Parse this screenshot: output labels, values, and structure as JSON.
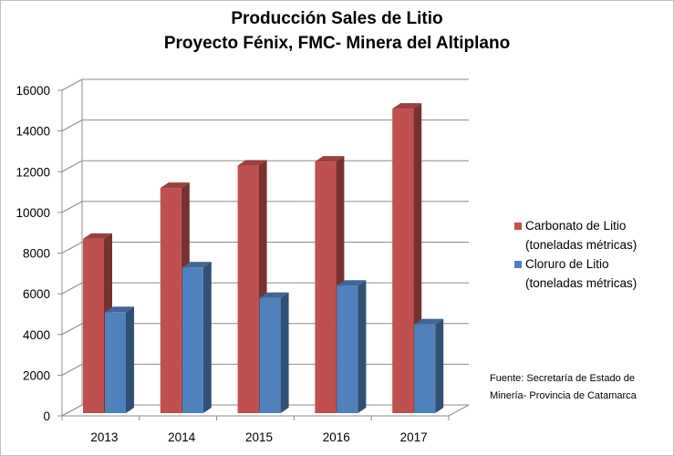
{
  "chart_data": {
    "type": "bar",
    "title": "Producción  Sales de Litio",
    "subtitle": "Proyecto Fénix, FMC- Minera del Altiplano",
    "categories": [
      "2013",
      "2014",
      "2015",
      "2016",
      "2017"
    ],
    "series": [
      {
        "name": "Carbonato de Litio (toneladas métricas)",
        "line1": "Carbonato de Litio",
        "line2": "(toneladas métricas)",
        "color": "#c0504d",
        "values": [
          8700,
          11200,
          12300,
          12500,
          15100
        ]
      },
      {
        "name": "Cloruro de Litio (toneladas métricas)",
        "line1": "Cloruro de Litio",
        "line2": "(toneladas métricas)",
        "color": "#4f81bd",
        "values": [
          5100,
          7300,
          5800,
          6400,
          4500
        ]
      }
    ],
    "yticks": [
      "0",
      "2000",
      "4000",
      "6000",
      "8000",
      "10000",
      "12000",
      "14000",
      "16000"
    ],
    "ylim": [
      0,
      16000
    ],
    "xlabel": "",
    "ylabel": "",
    "grid": true,
    "legend": "right"
  },
  "source": {
    "line1": "Fuente:  Secretaría de Estado de",
    "line2": "Minería- Provincia de Catamarca"
  }
}
